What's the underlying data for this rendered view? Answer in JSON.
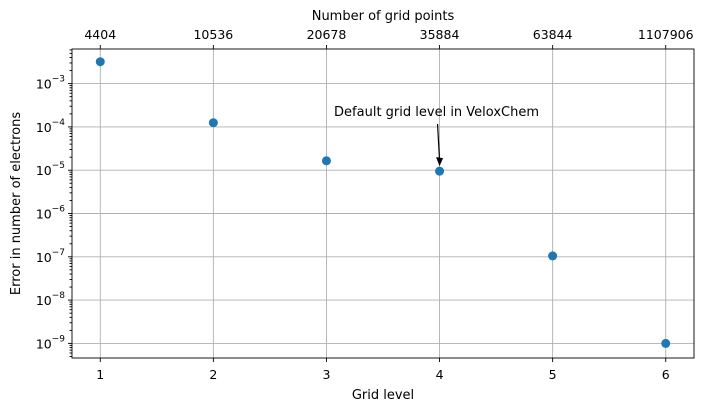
{
  "chart_data": {
    "type": "scatter",
    "x": [
      1,
      2,
      3,
      4,
      5,
      6
    ],
    "y": [
      0.0032,
      0.000125,
      1.65e-05,
      9.5e-06,
      1.05e-07,
      1e-09
    ],
    "xlabel": "Grid level",
    "ylabel": "Error in number of electrons",
    "xlim": [
      0.75,
      6.25
    ],
    "ylim": [
      4.6e-10,
      0.0063
    ],
    "yscale": "log",
    "xticks": [
      "1",
      "2",
      "3",
      "4",
      "5",
      "6"
    ],
    "yticks_exponents": [
      -9,
      -8,
      -7,
      -6,
      -5,
      -4,
      -3
    ],
    "ytick_base": "10",
    "top_axis": {
      "label": "Number of grid points",
      "ticks": [
        "4404",
        "10536",
        "20678",
        "35884",
        "63844",
        "1107906"
      ]
    },
    "annotation": {
      "text": "Default grid level in VeloxChem",
      "x": 4,
      "y": 9.5e-06
    },
    "grid": true,
    "marker_color": "#1f77b4"
  }
}
